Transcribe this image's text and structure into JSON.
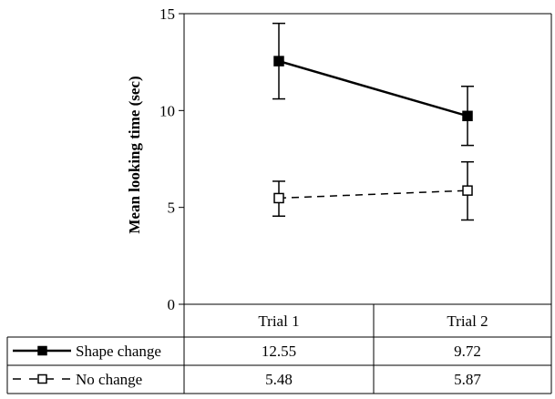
{
  "chart_data": {
    "type": "line",
    "categories": [
      "Trial 1",
      "Trial 2"
    ],
    "ylabel": "Mean looking time (sec)",
    "ylim": [
      0,
      15
    ],
    "yticks": [
      0,
      5,
      10,
      15
    ],
    "grid": false,
    "legend": "table-below",
    "series": [
      {
        "name": "Shape change",
        "values": [
          12.55,
          9.72
        ],
        "value_labels": [
          "12.55",
          "9.72"
        ],
        "error_low": [
          10.6,
          8.2
        ],
        "error_high": [
          14.5,
          11.25
        ],
        "line_style": "solid",
        "marker": "filled-square",
        "color": "#000000"
      },
      {
        "name": "No change",
        "values": [
          5.48,
          5.87
        ],
        "value_labels": [
          "5.48",
          "5.87"
        ],
        "error_low": [
          4.55,
          4.35
        ],
        "error_high": [
          6.35,
          7.35
        ],
        "line_style": "dashed",
        "marker": "open-square",
        "color": "#000000"
      }
    ]
  }
}
